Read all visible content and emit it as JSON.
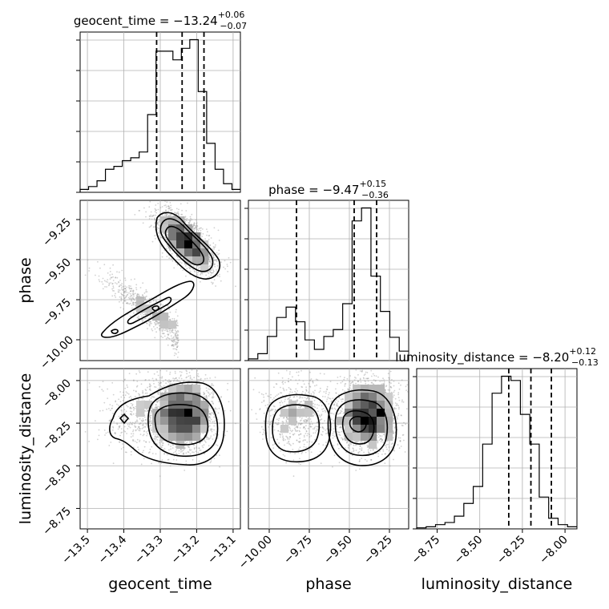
{
  "chart_data": {
    "type": "corner",
    "parameters": [
      {
        "name": "geocent_time",
        "axis_label": "geocent_time",
        "title_prefix": "geocent_time = ",
        "median": "−13.24",
        "plus": "+0.06",
        "minus": "−0.07",
        "range": [
          -13.52,
          -13.08
        ],
        "ticks": [
          -13.5,
          -13.4,
          -13.3,
          -13.2,
          -13.1
        ],
        "tick_labels": [
          "−13.5",
          "−13.4",
          "−13.3",
          "−13.2",
          "−13.1"
        ],
        "quantiles": [
          -13.31,
          -13.24,
          -13.18
        ],
        "hist": [
          1,
          2,
          4,
          8,
          9,
          11,
          12,
          14,
          27,
          49,
          49,
          46,
          50,
          53,
          35,
          17,
          8,
          3,
          1
        ]
      },
      {
        "name": "phase",
        "axis_label": "phase",
        "title_prefix": "phase = ",
        "median": "−9.47",
        "plus": "+0.15",
        "minus": "−0.36",
        "range": [
          -10.13,
          -9.13
        ],
        "ticks": [
          -10.0,
          -9.75,
          -9.5,
          -9.25
        ],
        "tick_labels": [
          "−10.00",
          "−9.75",
          "−9.50",
          "−9.25"
        ],
        "quantiles": [
          -9.83,
          -9.47,
          -9.33
        ],
        "hist": [
          2,
          8,
          28,
          50,
          62,
          45,
          24,
          13,
          28,
          36,
          66,
          162,
          177,
          98,
          57,
          27,
          11
        ]
      },
      {
        "name": "luminosity_distance",
        "axis_label": "luminosity_distance",
        "title_prefix": "luminosity_distance = ",
        "median": "−8.20",
        "plus": "+0.12",
        "minus": "−0.13",
        "range": [
          -8.87,
          -7.93
        ],
        "ticks": [
          -8.75,
          -8.5,
          -8.25,
          -8.0
        ],
        "tick_labels": [
          "−8.75",
          "−8.50",
          "−8.25",
          "−8.00"
        ],
        "quantiles": [
          -8.33,
          -8.2,
          -8.08
        ],
        "hist": [
          0.5,
          1,
          2,
          3,
          6,
          12,
          20,
          40,
          64,
          72,
          70,
          54,
          40,
          15,
          5,
          2,
          1
        ]
      }
    ],
    "grid": true,
    "density_color": "#000000",
    "scatter_color": "#9a9a9a"
  }
}
